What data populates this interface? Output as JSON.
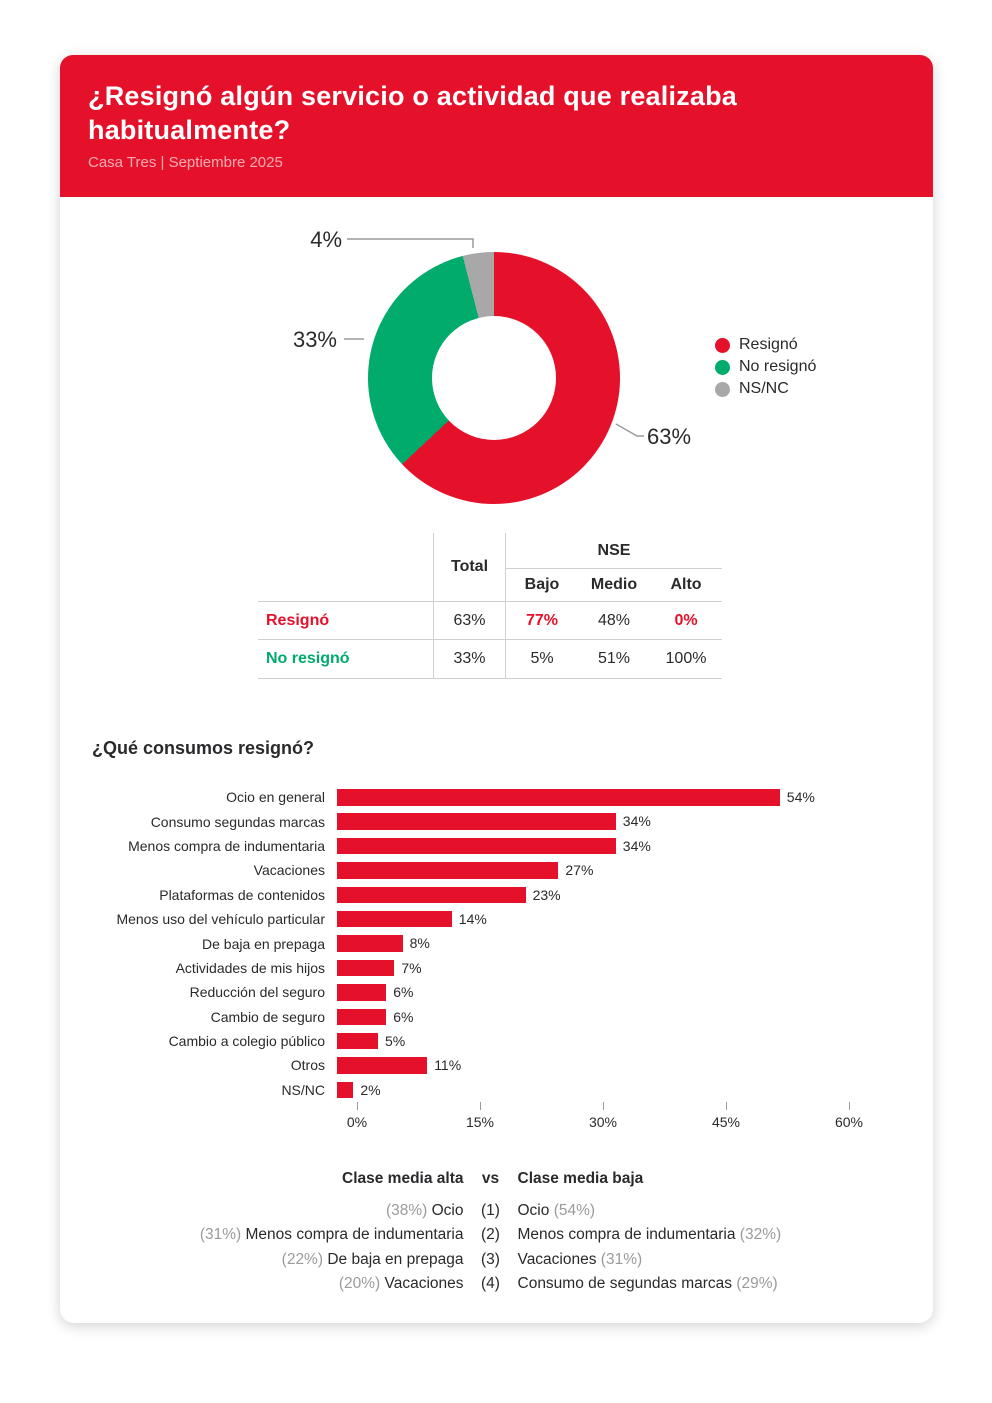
{
  "header": {
    "title": "¿Resignó algún servicio o actividad que realizaba habitualmente?",
    "subtitle": "Casa Tres | Septiembre 2025"
  },
  "colors": {
    "red": "#e5112a",
    "green": "#00ab6c",
    "gray": "#a8a8a8",
    "dark_text": "#2b292c",
    "muted_text": "#9b9b9b"
  },
  "chart_data": [
    {
      "type": "pie",
      "subtype": "donut",
      "labels": [
        "Resignó",
        "No resignó",
        "NS/NC"
      ],
      "values": [
        63,
        33,
        4
      ],
      "value_labels": [
        "63%",
        "33%",
        "4%"
      ],
      "colors": [
        "#e5112a",
        "#00ab6c",
        "#a8a8a8"
      ],
      "legend_position": "right",
      "start_angle": "top",
      "direction": "clockwise"
    },
    {
      "type": "bar",
      "orientation": "horizontal",
      "title": "¿Qué consumos resignó?",
      "categories": [
        "Ocio en general",
        "Consumo segundas marcas",
        "Menos compra de indumentaria",
        "Vacaciones",
        "Plataformas de contenidos",
        "Menos uso del vehículo particular",
        "De baja en prepaga",
        "Actividades de mis hijos",
        "Reducción del seguro",
        "Cambio de seguro",
        "Cambio a colegio público",
        "Otros",
        "NS/NC"
      ],
      "values": [
        54,
        34,
        34,
        27,
        23,
        14,
        8,
        7,
        6,
        6,
        5,
        11,
        2
      ],
      "value_labels": [
        "54%",
        "34%",
        "34%",
        "27%",
        "23%",
        "14%",
        "8%",
        "7%",
        "6%",
        "6%",
        "5%",
        "11%",
        "2%"
      ],
      "bar_color": "#e5112a",
      "xlim": [
        0,
        60
      ],
      "x_ticks": [
        "0%",
        "15%",
        "30%",
        "45%",
        "60%"
      ],
      "x_tick_values": [
        0,
        15,
        30,
        45,
        60
      ],
      "grid": true
    },
    {
      "type": "table",
      "group_header": "NSE",
      "total_header": "Total",
      "sub_columns": [
        "Bajo",
        "Medio",
        "Alto"
      ],
      "rows": [
        {
          "label": "Resignó",
          "label_color": "#e5112a",
          "values": [
            "63%",
            "77%",
            "48%",
            "0%"
          ],
          "highlight": [
            false,
            true,
            false,
            true
          ]
        },
        {
          "label": "No resignó",
          "label_color": "#00ab6c",
          "values": [
            "33%",
            "5%",
            "51%",
            "100%"
          ],
          "highlight": [
            false,
            false,
            false,
            false
          ]
        }
      ]
    }
  ],
  "comparison": {
    "left_title": "Clase media alta",
    "vs_label": "vs",
    "right_title": "Clase media baja",
    "rows": [
      {
        "left_pct": "(38%)",
        "left_label": "Ocio",
        "rank": "(1)",
        "right_label": "Ocio",
        "right_pct": "(54%)"
      },
      {
        "left_pct": "(31%)",
        "left_label": "Menos compra de indumentaria",
        "rank": "(2)",
        "right_label": "Menos compra de indumentaria",
        "right_pct": "(32%)"
      },
      {
        "left_pct": "(22%)",
        "left_label": "De baja en prepaga",
        "rank": "(3)",
        "right_label": "Vacaciones",
        "right_pct": "(31%)"
      },
      {
        "left_pct": "(20%)",
        "left_label": "Vacaciones",
        "rank": "(4)",
        "right_label": "Consumo de segundas marcas",
        "right_pct": "(29%)"
      }
    ]
  }
}
